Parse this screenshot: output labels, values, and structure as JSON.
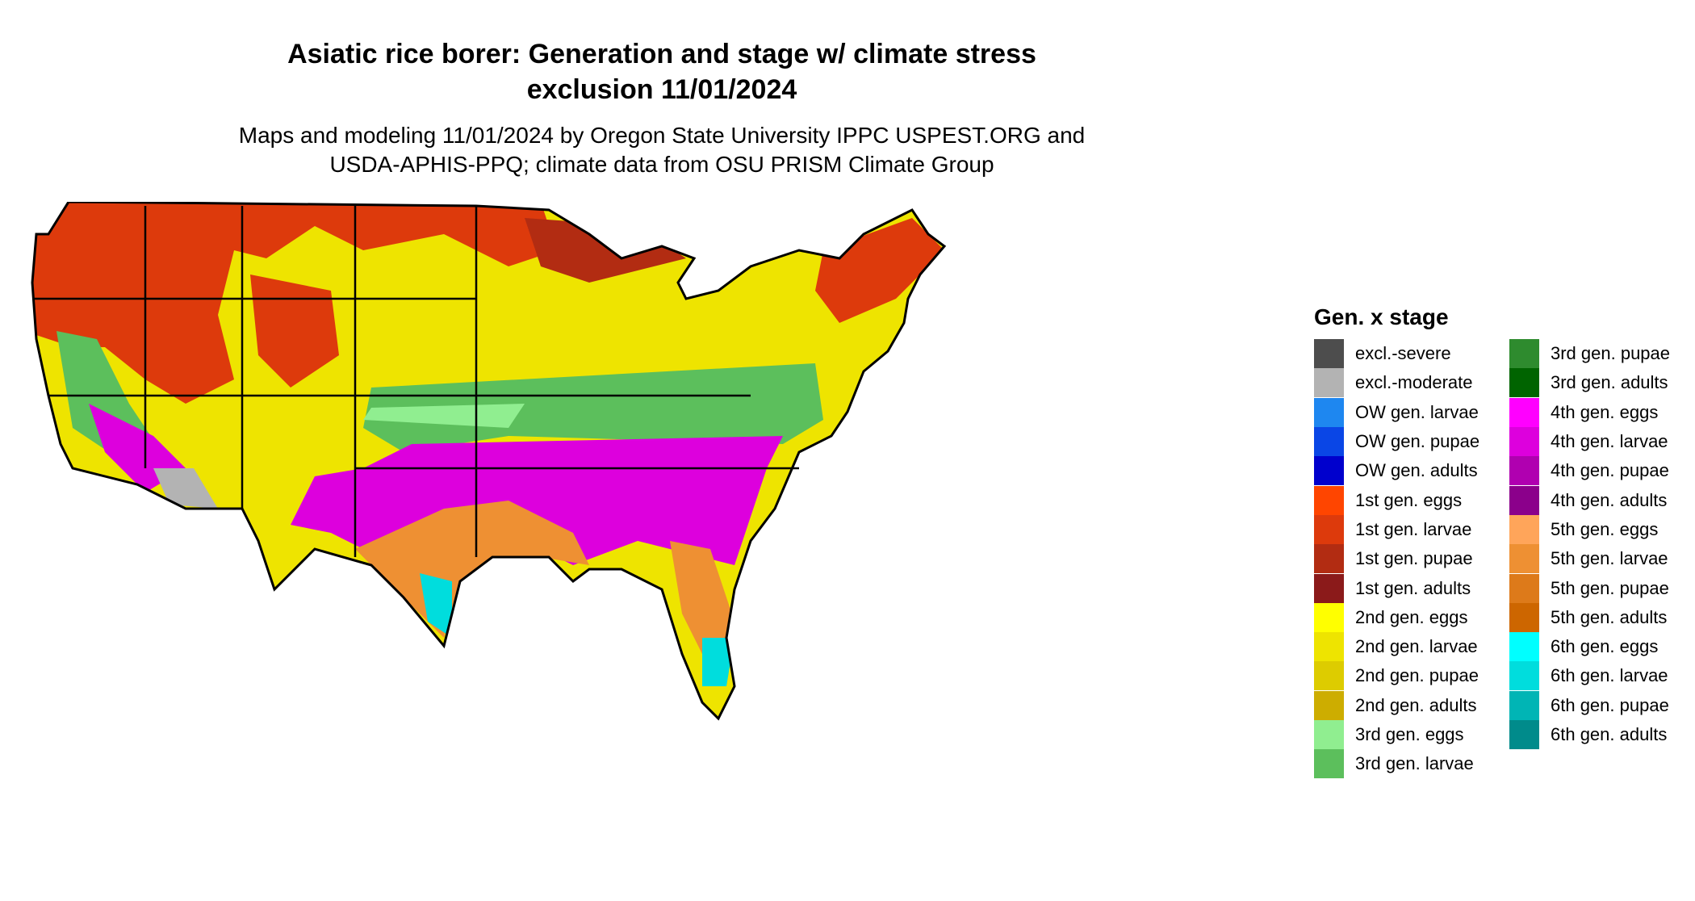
{
  "title_line1": "Asiatic rice borer: Generation and stage w/ climate stress",
  "title_line2": "exclusion 11/01/2024",
  "subtitle_line1": "Maps and modeling 11/01/2024 by Oregon State University IPPC USPEST.ORG and",
  "subtitle_line2": "USDA-APHIS-PPQ; climate data from OSU PRISM Climate Group",
  "legend": {
    "title": "Gen. x stage",
    "col1": [
      {
        "label": "excl.-severe",
        "color": "#4d4d4d"
      },
      {
        "label": "excl.-moderate",
        "color": "#b3b3b3"
      },
      {
        "label": "OW gen. larvae",
        "color": "#1e87f0"
      },
      {
        "label": "OW gen. pupae",
        "color": "#0a46e6"
      },
      {
        "label": "OW gen. adults",
        "color": "#0000cd"
      },
      {
        "label": "1st gen. eggs",
        "color": "#ff4500"
      },
      {
        "label": "1st gen. larvae",
        "color": "#dd3a0c"
      },
      {
        "label": "1st gen. pupae",
        "color": "#b22c12"
      },
      {
        "label": "1st gen. adults",
        "color": "#8b1a1a"
      },
      {
        "label": "2nd gen. eggs",
        "color": "#ffff00"
      },
      {
        "label": "2nd gen. larvae",
        "color": "#eee400"
      },
      {
        "label": "2nd gen. pupae",
        "color": "#ddcc00"
      },
      {
        "label": "2nd gen. adults",
        "color": "#cdad00"
      },
      {
        "label": "3rd gen. eggs",
        "color": "#90ee90"
      },
      {
        "label": "3rd gen. larvae",
        "color": "#5cbf5c"
      }
    ],
    "col2": [
      {
        "label": "3rd gen. pupae",
        "color": "#2e8b2e"
      },
      {
        "label": "3rd gen. adults",
        "color": "#006400"
      },
      {
        "label": "4th gen. eggs",
        "color": "#ff00ff"
      },
      {
        "label": "4th gen. larvae",
        "color": "#dd00dd"
      },
      {
        "label": "4th gen. pupae",
        "color": "#b000b0"
      },
      {
        "label": "4th gen. adults",
        "color": "#8b008b"
      },
      {
        "label": "5th gen. eggs",
        "color": "#ffa55a"
      },
      {
        "label": "5th gen. larvae",
        "color": "#ee9033"
      },
      {
        "label": "5th gen. pupae",
        "color": "#dd7a1a"
      },
      {
        "label": "5th gen. adults",
        "color": "#cd6600"
      },
      {
        "label": "6th gen. eggs",
        "color": "#00ffff"
      },
      {
        "label": "6th gen. larvae",
        "color": "#00dddd"
      },
      {
        "label": "6th gen. pupae",
        "color": "#00b5b5"
      },
      {
        "label": "6th gen. adults",
        "color": "#008b8b"
      }
    ]
  }
}
